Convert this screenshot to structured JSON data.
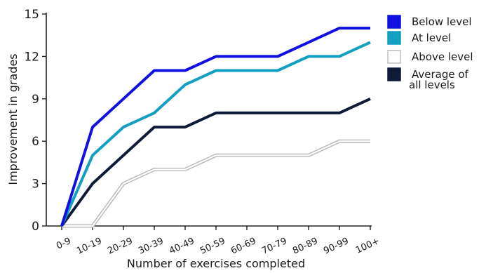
{
  "chart_data": {
    "type": "line",
    "xlabel": "Number of exercises completed",
    "ylabel": "Improvement in grades",
    "categories": [
      "0-9",
      "10-19",
      "20-29",
      "30-39",
      "40-49",
      "50-59",
      "60-69",
      "70-79",
      "80-89",
      "90-99",
      "100+"
    ],
    "ylim": [
      0,
      15
    ],
    "yticks": [
      "0",
      "3",
      "6",
      "9",
      "12",
      "15"
    ],
    "grid": false,
    "legend_position": "top-right",
    "series": [
      {
        "name": "Below level",
        "color": "#1010e0",
        "values": [
          0,
          7,
          9,
          11,
          11,
          12,
          12,
          12,
          13,
          14,
          14
        ]
      },
      {
        "name": "At level",
        "color": "#129fc2",
        "values": [
          0,
          5,
          7,
          8,
          10,
          11,
          11,
          11,
          12,
          12,
          13
        ]
      },
      {
        "name": "Above level",
        "color": "#ffffff",
        "values": [
          0,
          0,
          3,
          4,
          4,
          5,
          5,
          5,
          5,
          6,
          6
        ]
      },
      {
        "name": "Average of all levels",
        "color": "#0f1a38",
        "values": [
          0,
          3,
          5,
          7,
          7,
          8,
          8,
          8,
          8,
          8,
          9
        ]
      }
    ],
    "legend_lines": [
      [
        "Below level"
      ],
      [
        "At level"
      ],
      [
        "Above level"
      ],
      [
        "Average of",
        "all levels"
      ]
    ]
  }
}
